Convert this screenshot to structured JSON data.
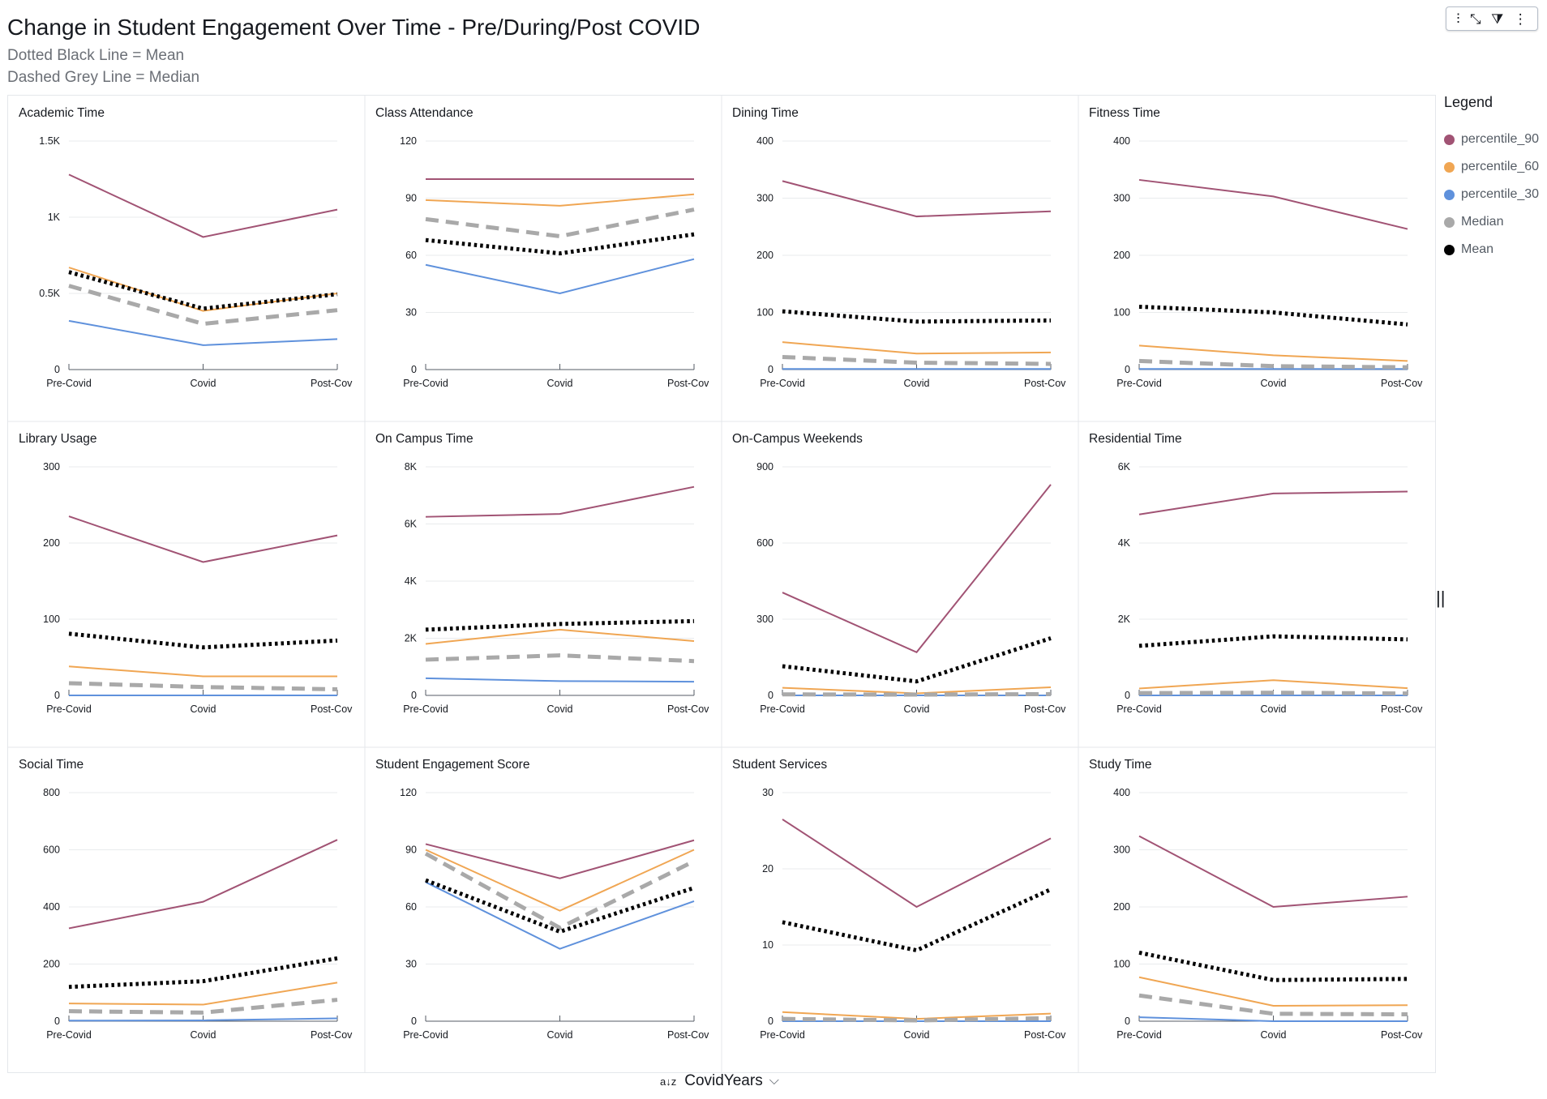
{
  "title": "Change in Student Engagement Over Time - Pre/During/Post COVID",
  "subtitle1": "Dotted Black Line = Mean",
  "subtitle2": "Dashed Grey Line = Median",
  "toolbar": {
    "icons": [
      "chart-options-icon",
      "collapse-icon",
      "filter-icon",
      "more-options-icon"
    ],
    "glyphs": [
      "⫶",
      "⤡",
      "⧩",
      "⋮"
    ]
  },
  "legend": {
    "title": "Legend",
    "items": [
      {
        "label": "percentile_90",
        "color": "#a15374"
      },
      {
        "label": "percentile_60",
        "color": "#f0a653"
      },
      {
        "label": "percentile_30",
        "color": "#5f91dc"
      },
      {
        "label": "Median",
        "color": "#a9a9a9"
      },
      {
        "label": "Mean",
        "color": "#000000"
      }
    ]
  },
  "footer": {
    "sort_glyph": "a↓z",
    "field": "CovidYears",
    "chevron": "⌵"
  },
  "resize_glyph": "||",
  "chart_data": [
    {
      "type": "line",
      "title": "Academic Time",
      "categories": [
        "Pre-Covid",
        "Covid",
        "Post-Cov"
      ],
      "ylim": [
        0,
        1500
      ],
      "yticks": [
        0,
        500,
        1000,
        1500
      ],
      "ytick_labels": [
        "0",
        "0.5K",
        "1K",
        "1.5K"
      ],
      "series": [
        {
          "name": "percentile_90",
          "values": [
            1280,
            870,
            1050
          ]
        },
        {
          "name": "percentile_60",
          "values": [
            670,
            385,
            500
          ]
        },
        {
          "name": "percentile_30",
          "values": [
            320,
            160,
            200
          ]
        },
        {
          "name": "Median",
          "values": [
            550,
            300,
            390
          ]
        },
        {
          "name": "Mean",
          "values": [
            640,
            400,
            495
          ]
        }
      ]
    },
    {
      "type": "line",
      "title": "Class Attendance",
      "categories": [
        "Pre-Covid",
        "Covid",
        "Post-Cov"
      ],
      "ylim": [
        0,
        120
      ],
      "yticks": [
        0,
        30,
        60,
        90,
        120
      ],
      "ytick_labels": [
        "0",
        "30",
        "60",
        "90",
        "120"
      ],
      "series": [
        {
          "name": "percentile_90",
          "values": [
            100,
            100,
            100
          ]
        },
        {
          "name": "percentile_60",
          "values": [
            89,
            86,
            92
          ]
        },
        {
          "name": "percentile_30",
          "values": [
            55,
            40,
            58
          ]
        },
        {
          "name": "Median",
          "values": [
            79,
            70,
            84
          ]
        },
        {
          "name": "Mean",
          "values": [
            68,
            61,
            71
          ]
        }
      ]
    },
    {
      "type": "line",
      "title": "Dining Time",
      "categories": [
        "Pre-Covid",
        "Covid",
        "Post-Cov"
      ],
      "ylim": [
        0,
        400
      ],
      "yticks": [
        0,
        100,
        200,
        300,
        400
      ],
      "ytick_labels": [
        "0",
        "100",
        "200",
        "300",
        "400"
      ],
      "series": [
        {
          "name": "percentile_90",
          "values": [
            330,
            268,
            277
          ]
        },
        {
          "name": "percentile_60",
          "values": [
            48,
            28,
            30
          ]
        },
        {
          "name": "percentile_30",
          "values": [
            1,
            1,
            1
          ]
        },
        {
          "name": "Median",
          "values": [
            22,
            12,
            10
          ]
        },
        {
          "name": "Mean",
          "values": [
            102,
            84,
            86
          ]
        }
      ]
    },
    {
      "type": "line",
      "title": "Fitness Time",
      "categories": [
        "Pre-Covid",
        "Covid",
        "Post-Cov"
      ],
      "ylim": [
        0,
        400
      ],
      "yticks": [
        0,
        100,
        200,
        300,
        400
      ],
      "ytick_labels": [
        "0",
        "100",
        "200",
        "300",
        "400"
      ],
      "series": [
        {
          "name": "percentile_90",
          "values": [
            332,
            303,
            246
          ]
        },
        {
          "name": "percentile_60",
          "values": [
            42,
            25,
            15
          ]
        },
        {
          "name": "percentile_30",
          "values": [
            1,
            1,
            1
          ]
        },
        {
          "name": "Median",
          "values": [
            15,
            6,
            4
          ]
        },
        {
          "name": "Mean",
          "values": [
            110,
            100,
            79
          ]
        }
      ]
    },
    {
      "type": "line",
      "title": "Library Usage",
      "categories": [
        "Pre-Covid",
        "Covid",
        "Post-Cov"
      ],
      "ylim": [
        0,
        300
      ],
      "yticks": [
        0,
        100,
        200,
        300
      ],
      "ytick_labels": [
        "0",
        "100",
        "200",
        "300"
      ],
      "series": [
        {
          "name": "percentile_90",
          "values": [
            235,
            175,
            210
          ]
        },
        {
          "name": "percentile_60",
          "values": [
            38,
            25,
            25
          ]
        },
        {
          "name": "percentile_30",
          "values": [
            0,
            0,
            0
          ]
        },
        {
          "name": "Median",
          "values": [
            16,
            11,
            8
          ]
        },
        {
          "name": "Mean",
          "values": [
            81,
            63,
            72
          ]
        }
      ]
    },
    {
      "type": "line",
      "title": "On Campus Time",
      "categories": [
        "Pre-Covid",
        "Covid",
        "Post-Cov"
      ],
      "ylim": [
        0,
        8000
      ],
      "yticks": [
        0,
        2000,
        4000,
        6000,
        8000
      ],
      "ytick_labels": [
        "0",
        "2K",
        "4K",
        "6K",
        "8K"
      ],
      "series": [
        {
          "name": "percentile_90",
          "values": [
            6250,
            6350,
            7300
          ]
        },
        {
          "name": "percentile_60",
          "values": [
            1800,
            2300,
            1900
          ]
        },
        {
          "name": "percentile_30",
          "values": [
            600,
            500,
            480
          ]
        },
        {
          "name": "Median",
          "values": [
            1250,
            1400,
            1200
          ]
        },
        {
          "name": "Mean",
          "values": [
            2300,
            2500,
            2600
          ]
        }
      ]
    },
    {
      "type": "line",
      "title": "On-Campus Weekends",
      "categories": [
        "Pre-Covid",
        "Covid",
        "Post-Cov"
      ],
      "ylim": [
        0,
        900
      ],
      "yticks": [
        0,
        300,
        600,
        900
      ],
      "ytick_labels": [
        "0",
        "300",
        "600",
        "900"
      ],
      "series": [
        {
          "name": "percentile_90",
          "values": [
            405,
            170,
            830
          ]
        },
        {
          "name": "percentile_60",
          "values": [
            30,
            8,
            32
          ]
        },
        {
          "name": "percentile_30",
          "values": [
            0,
            0,
            0
          ]
        },
        {
          "name": "Median",
          "values": [
            4,
            3,
            5
          ]
        },
        {
          "name": "Mean",
          "values": [
            115,
            55,
            225
          ]
        }
      ]
    },
    {
      "type": "line",
      "title": "Residential Time",
      "categories": [
        "Pre-Covid",
        "Covid",
        "Post-Cov"
      ],
      "ylim": [
        0,
        6000
      ],
      "yticks": [
        0,
        2000,
        4000,
        6000
      ],
      "ytick_labels": [
        "0",
        "2K",
        "4K",
        "6K"
      ],
      "series": [
        {
          "name": "percentile_90",
          "values": [
            4750,
            5300,
            5350
          ]
        },
        {
          "name": "percentile_60",
          "values": [
            180,
            400,
            190
          ]
        },
        {
          "name": "percentile_30",
          "values": [
            0,
            0,
            0
          ]
        },
        {
          "name": "Median",
          "values": [
            60,
            70,
            50
          ]
        },
        {
          "name": "Mean",
          "values": [
            1300,
            1550,
            1470
          ]
        }
      ]
    },
    {
      "type": "line",
      "title": "Social Time",
      "categories": [
        "Pre-Covid",
        "Covid",
        "Post-Cov"
      ],
      "ylim": [
        0,
        800
      ],
      "yticks": [
        0,
        200,
        400,
        600,
        800
      ],
      "ytick_labels": [
        "0",
        "200",
        "400",
        "600",
        "800"
      ],
      "series": [
        {
          "name": "percentile_90",
          "values": [
            325,
            418,
            635
          ]
        },
        {
          "name": "percentile_60",
          "values": [
            62,
            58,
            135
          ]
        },
        {
          "name": "percentile_30",
          "values": [
            2,
            3,
            10
          ]
        },
        {
          "name": "Median",
          "values": [
            35,
            30,
            75
          ]
        },
        {
          "name": "Mean",
          "values": [
            120,
            140,
            220
          ]
        }
      ]
    },
    {
      "type": "line",
      "title": "Student Engagement Score",
      "categories": [
        "Pre-Covid",
        "Covid",
        "Post-Cov"
      ],
      "ylim": [
        0,
        120
      ],
      "yticks": [
        0,
        30,
        60,
        90,
        120
      ],
      "ytick_labels": [
        "0",
        "30",
        "60",
        "90",
        "120"
      ],
      "series": [
        {
          "name": "percentile_90",
          "values": [
            93,
            75,
            95
          ]
        },
        {
          "name": "percentile_60",
          "values": [
            90,
            58,
            90
          ]
        },
        {
          "name": "percentile_30",
          "values": [
            73,
            38,
            63
          ]
        },
        {
          "name": "Median",
          "values": [
            88,
            49,
            84
          ]
        },
        {
          "name": "Mean",
          "values": [
            74,
            47,
            70
          ]
        }
      ]
    },
    {
      "type": "line",
      "title": "Student Services",
      "categories": [
        "Pre-Covid",
        "Covid",
        "Post-Cov"
      ],
      "ylim": [
        0,
        30
      ],
      "yticks": [
        0,
        10,
        20,
        30
      ],
      "ytick_labels": [
        "0",
        "10",
        "20",
        "30"
      ],
      "series": [
        {
          "name": "percentile_90",
          "values": [
            26.5,
            15,
            24
          ]
        },
        {
          "name": "percentile_60",
          "values": [
            1.2,
            0.3,
            1
          ]
        },
        {
          "name": "percentile_30",
          "values": [
            0,
            0,
            0
          ]
        },
        {
          "name": "Median",
          "values": [
            0.3,
            0.1,
            0.4
          ]
        },
        {
          "name": "Mean",
          "values": [
            13,
            9.3,
            17.3
          ]
        }
      ]
    },
    {
      "type": "line",
      "title": "Study Time",
      "categories": [
        "Pre-Covid",
        "Covid",
        "Post-Cov"
      ],
      "ylim": [
        0,
        400
      ],
      "yticks": [
        0,
        100,
        200,
        300,
        400
      ],
      "ytick_labels": [
        "0",
        "100",
        "200",
        "300",
        "400"
      ],
      "series": [
        {
          "name": "percentile_90",
          "values": [
            324,
            200,
            218
          ]
        },
        {
          "name": "percentile_60",
          "values": [
            77,
            27,
            28
          ]
        },
        {
          "name": "percentile_30",
          "values": [
            7,
            0,
            0
          ]
        },
        {
          "name": "Median",
          "values": [
            45,
            13,
            12
          ]
        },
        {
          "name": "Mean",
          "values": [
            120,
            72,
            74
          ]
        }
      ]
    }
  ]
}
